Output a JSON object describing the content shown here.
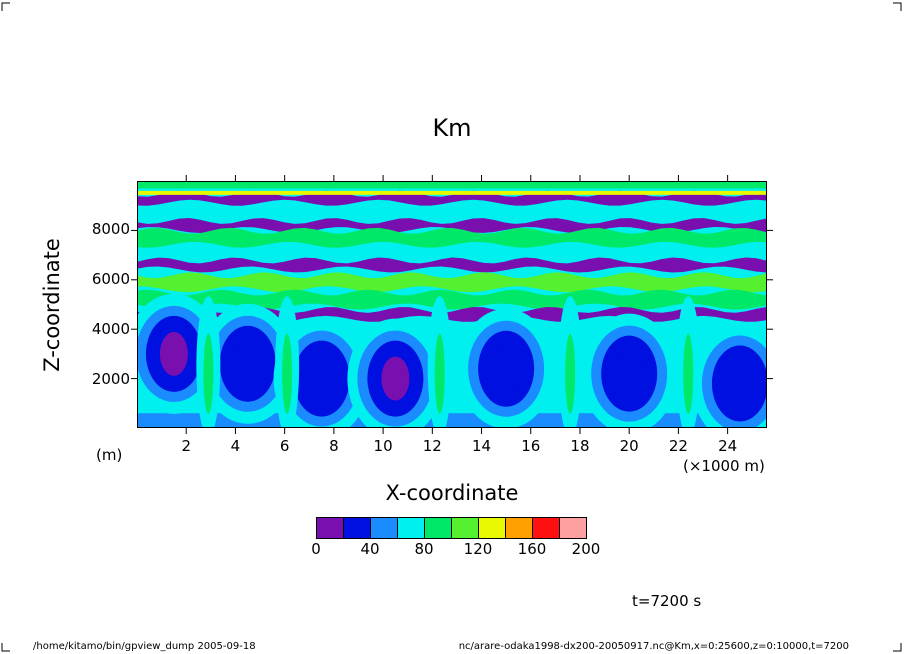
{
  "chart_data": {
    "type": "heatmap",
    "title": "Km",
    "xlabel": "X-coordinate",
    "ylabel": "Z-coordinate",
    "x_unit": "(×1000 m)",
    "y_unit": "(m)",
    "x_ticks": [
      2,
      4,
      6,
      8,
      10,
      12,
      14,
      16,
      18,
      20,
      22,
      24
    ],
    "y_ticks": [
      2000,
      4000,
      6000,
      8000
    ],
    "xlim": [
      0,
      25.6
    ],
    "ylim": [
      0,
      10000
    ],
    "colorbar": {
      "levels": [
        0,
        20,
        40,
        60,
        80,
        100,
        120,
        140,
        160,
        180,
        200
      ],
      "tick_labels": [
        "0",
        "40",
        "80",
        "120",
        "160",
        "200"
      ],
      "colors": [
        "#7a0fb0",
        "#0010e0",
        "#1a8cff",
        "#00f0f0",
        "#00e868",
        "#55f030",
        "#e8f800",
        "#ffa000",
        "#ff1010",
        "#ffa0a0"
      ]
    },
    "annotation": "t=7200 s",
    "horizontal_bands": [
      {
        "z": 9300,
        "class": 0
      },
      {
        "z": 8200,
        "class": 0
      },
      {
        "z": 7700,
        "class": 4
      },
      {
        "z": 6600,
        "class": 0
      },
      {
        "z": 5900,
        "class": 5
      },
      {
        "z": 5200,
        "class": 4
      },
      {
        "z": 4600,
        "class": 0
      }
    ],
    "vortex_cores": [
      {
        "x": 1.5,
        "z": 3000,
        "class": 0
      },
      {
        "x": 4.5,
        "z": 2600,
        "class": 1
      },
      {
        "x": 7.5,
        "z": 2000,
        "class": 1
      },
      {
        "x": 10.5,
        "z": 2000,
        "class": 0
      },
      {
        "x": 15.0,
        "z": 2400,
        "class": 1
      },
      {
        "x": 20.0,
        "z": 2200,
        "class": 1
      },
      {
        "x": 24.5,
        "z": 1800,
        "class": 1
      }
    ]
  },
  "footer": {
    "left": "/home/kitamo/bin/gpview_dump  2005-09-18",
    "right": "nc/arare-odaka1998-dx200-20050917.nc@Km,x=0:25600,z=0:10000,t=7200"
  }
}
